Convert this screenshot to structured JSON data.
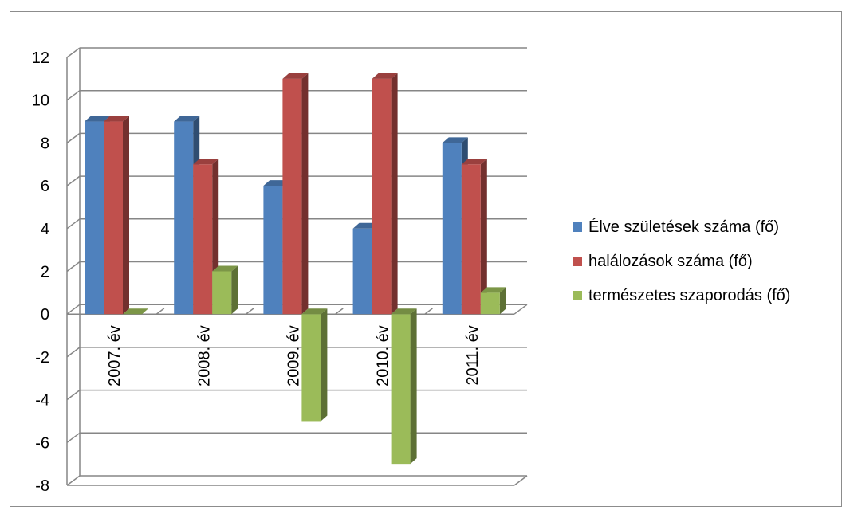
{
  "chart_data": {
    "type": "bar",
    "categories": [
      "2007. év",
      "2008. év",
      "2009. év",
      "2010. év",
      "2011. év"
    ],
    "series": [
      {
        "name": "Élve születések száma (fő)",
        "color": "#4f81bd",
        "values": [
          9,
          9,
          6,
          4,
          8
        ]
      },
      {
        "name": "halálozások száma (fő)",
        "color": "#c0504d",
        "values": [
          9,
          7,
          11,
          11,
          7
        ]
      },
      {
        "name": "természetes szaporodás (fő)",
        "color": "#9bbb59",
        "values": [
          0,
          2,
          -5,
          -7,
          1
        ]
      }
    ],
    "yticks": [
      12,
      10,
      8,
      6,
      4,
      2,
      0,
      -2,
      -4,
      -6,
      -8
    ],
    "ylim": [
      -8,
      12
    ],
    "grid": true,
    "legend_position": "right",
    "style": "3d-clustered-column"
  }
}
